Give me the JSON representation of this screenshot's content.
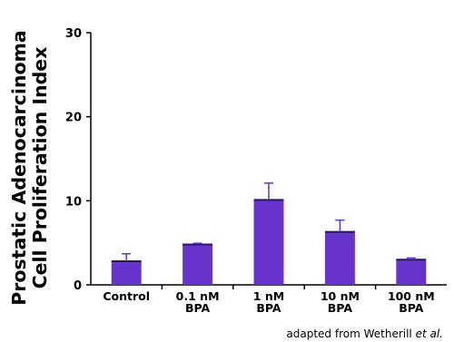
{
  "chart_data": {
    "type": "bar",
    "title": "",
    "ylabel_lines": [
      "Prostatic Adenocarcinoma",
      "Cell Proliferation Index"
    ],
    "xlabel": "",
    "categories": [
      [
        "Control"
      ],
      [
        "0.1 nM",
        "BPA"
      ],
      [
        "1 nM",
        "BPA"
      ],
      [
        "10 nM",
        "BPA"
      ],
      [
        "100 nM",
        "BPA"
      ]
    ],
    "values": [
      2.8,
      4.8,
      10.1,
      6.3,
      3.0
    ],
    "errors": [
      0.9,
      0.15,
      2.0,
      1.4,
      0.2
    ],
    "ylim": [
      0,
      30
    ],
    "yticks": [
      0,
      10,
      20,
      30
    ],
    "grid": false,
    "bar_color": "#6633cc",
    "annotation": {
      "prefix": "adapted from Wetherill ",
      "emphasis": "et al."
    }
  }
}
